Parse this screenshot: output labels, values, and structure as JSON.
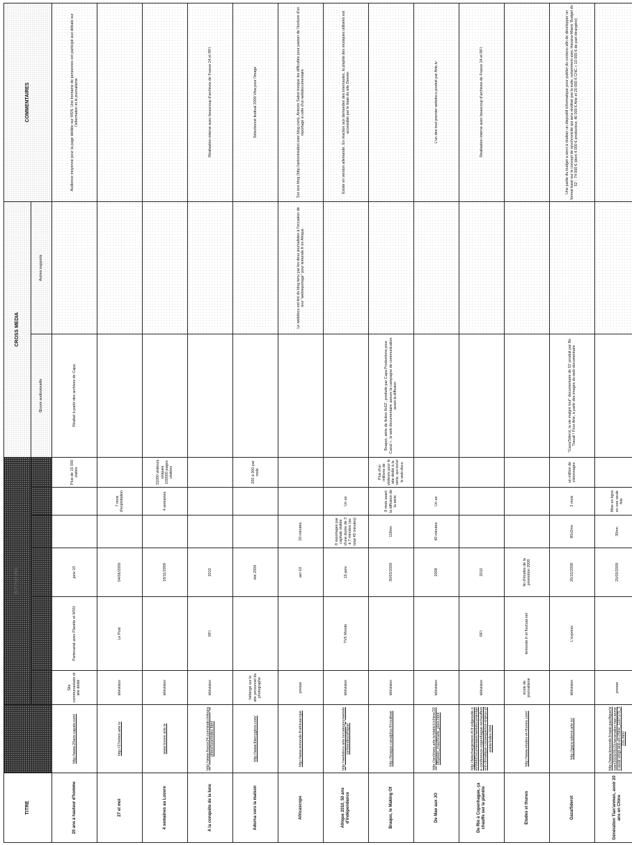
{
  "headers": {
    "titre": "TITRE",
    "diffusion": "DIFFUSION",
    "cross_media": "CROSS MEDIA",
    "oeuvre": "Œuvre audiovisuelle",
    "autres": "Autres supports",
    "commentaires": "COMMENTAIRES"
  },
  "colors": {
    "header_dark": "#262626",
    "border": "#222222"
  },
  "rows": [
    {
      "title": "20 ans à hauteur d'homme",
      "url": "http://www.20ans-capatv.com/",
      "type": "Site communautaire et site dédié",
      "partner": "Partenariat avec Planète et MSN",
      "date": "janv-10",
      "duration": "",
      "exploitation": "",
      "audience": "Plus de 15 000 visites",
      "oeuvre": "Réalisé à partir des archives de Capa",
      "autres": "",
      "comment": "Audience moyenne pour la page dédiée sur MSN. Une trentaine de personnes ont participé aux débats sur l'information et le journalisme"
    },
    {
      "title": "27 et moi",
      "url": "http://27etmoi.arte.tv",
      "type": "télévision",
      "partner": "Le Post",
      "date": "04/06/2009",
      "duration": "",
      "exploitation": "7 mois d'exploitation",
      "audience": "",
      "oeuvre": "",
      "autres": "",
      "comment": ""
    },
    {
      "title": "4 semaines au Louvre",
      "url": "www.louvre.arte.tv",
      "type": "télévision",
      "partner": "",
      "date": "18/11/2009",
      "duration": "",
      "exploitation": "4 semaines",
      "audience": "31000 visiteurs uniques 100000 pages visitées",
      "oeuvre": "",
      "autres": "",
      "comment": ""
    },
    {
      "title": "A la conquête de la lune",
      "url": "http://www.france24.com/static/infographies/lune/index.html",
      "type": "télévision",
      "partner": "RFI",
      "date": "2010",
      "duration": "",
      "exploitation": "",
      "audience": "",
      "oeuvre": "",
      "autres": "",
      "comment": "Réalisation interne avec beaucoup d'archives de France 24 et RFI"
    },
    {
      "title": "Adorna vers la maison",
      "url": "http://www.thierrygiron.com/",
      "type": "hébergé sur le site personnel du photographe",
      "partner": "",
      "date": "été 2009",
      "duration": "",
      "exploitation": "",
      "audience": "200 à 300 par mois",
      "oeuvre": "",
      "autres": "",
      "comment": "Sélectionné festival 2009  Visa pour l'image"
    },
    {
      "title": "Africascope",
      "url": "http://www.lemonde.fr/africascope",
      "type": "presse",
      "partner": "",
      "date": "avr-10",
      "duration": "20 minutes",
      "exploitation": "",
      "audience": "",
      "oeuvre": "",
      "autres": "Le webdocu est tiré du blog tenu par les deux journalistes à l'occasion de leur \"webreportage\" pour lemonde.fr en Afrique",
      "comment": "Sur son blog (http://antoninsabot.over-blog.com), Antonin Sabot évoque les difficultés pour passer de l'écriture d'un reportage à celle d'un webdocumentaire"
    },
    {
      "title": "Afrique 2010, 50 ans d'indépendance",
      "url": "http://webdocs.arte.tv/category/webdocs/mondes/afrique/",
      "type": "télévision",
      "partner": "TV5 Monde",
      "date": "15-janv",
      "duration": "8 reportages par capitale visitée d'une durée de 3 à 7 minutes (au total 45 minutes)",
      "exploitation": "Un an",
      "audience": "",
      "oeuvre": "",
      "autres": "",
      "comment": "Existe en version allemande. En réaction aux demandes des internautes, la playlist des musiques utilisées est accessible par le biais du site Deezer."
    },
    {
      "title": "Braquo, le Making Of",
      "url": "http://braquo.canalplus.fr/coulisse",
      "type": "télévision",
      "partner": "",
      "date": "30/03/2009",
      "duration": "118mn",
      "exploitation": "8 mois avant la diffusion de la série",
      "audience": "Plus d'un millions de visiteurs pour le site dédié à la série, qui inclut le web-docu",
      "oeuvre": "Braquo, série de fiction 8x52', produite par Capa Productions pour Canal +, le web documentaire assure la campagne de communication avant la diffusion",
      "autres": "",
      "comment": ""
    },
    {
      "title": "De Mao aux JO",
      "url": "http://archives.arte.tv/static/c/chine/2008/pekin_mao/fr/arte_plein.html",
      "type": "télévision",
      "partner": "",
      "date": "2008",
      "duration": "40 minutes",
      "exploitation": "Un an",
      "audience": "",
      "oeuvre": "",
      "autres": "",
      "comment": "L'un des tout premier webdocu produit par Arte.tv"
    },
    {
      "title": "De Rio à Copenhague, ça chauffe sur la planète",
      "url": "http://telechargement.rfi.fr.edgesuite.net/WebDocumentaire/webdocumentaire-conference-copenhague-rechauffement-climatique-consequence-enjeux-planete/index.html",
      "type": "télévision",
      "partner": "RFI",
      "date": "2010",
      "duration": "",
      "exploitation": "",
      "audience": "",
      "oeuvre": "",
      "autres": "",
      "comment": "Réalisation interne avec beaucoup d'archives de France 24 et RFI"
    },
    {
      "title": "Etudes et thunes",
      "url": "http://www.etudes-et-thunes.com/",
      "type": "école de journalisme",
      "partner": "lemonde.fr et fluctuat.net",
      "date": "fin d'études de la promotion 2008",
      "duration": "",
      "exploitation": "",
      "audience": "",
      "oeuvre": "",
      "autres": "",
      "comment": ""
    },
    {
      "title": "Gaza/Sderot",
      "url": "http://gaza-sderot.arte.tv/",
      "type": "télévision",
      "partner": "L'express",
      "date": "26/10/2008",
      "duration": "80x2mn",
      "exploitation": "2 mois",
      "audience": "un million de visionnages",
      "oeuvre": "\"Gaza/Sderot, la vie malgré tout\" documentaire de 52' produit par Bo Travail ! Pour Arte, à partir des images du web-documentaire",
      "autres": "",
      "comment": "Une partie du budget a servi à réaliser un dispositif informatique pour publier du contenu afin de développer un format basé sur le concept de synchronicité qui sera réutilisé par la suite, notamment avec Havana-Miami. Budget du 52' : 74 000 € (dont 4 000 € producteur, 40 000 € Arte et 20 000 € CNC + 10 000 € de part étrangère)"
    },
    {
      "title": "Génération Tian'anmen, avoir 20 ans en Chine",
      "url": "http://www.lemonde.fr/asie-pacifique/visuel/2009/05/25/generation-tian-anmen-avoir-vingt-ans-en-chine_1197170_3216.html",
      "type": "presse",
      "partner": "",
      "date": "25/05/2009",
      "duration": "30mn",
      "exploitation": "Mise en ligne en une seule fois",
      "audience": "",
      "oeuvre": "",
      "autres": "",
      "comment": ""
    }
  ]
}
